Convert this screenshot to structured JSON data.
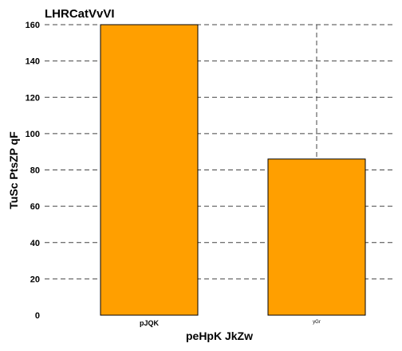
{
  "chart_data": {
    "type": "bar",
    "title": "LHRCatVvVI",
    "xlabel": "peHpK JkZw",
    "ylabel": "TuSc PtsZP qF",
    "categories": [
      "pJQK",
      "yGr"
    ],
    "values": [
      160,
      86
    ],
    "ylim": [
      0,
      160
    ],
    "yticks": [
      0,
      20,
      40,
      60,
      80,
      100,
      120,
      140,
      160
    ],
    "grid": true,
    "bar_color": "#ff9f00",
    "bar_edge_color": "#000000",
    "grid_color": "#444444"
  }
}
